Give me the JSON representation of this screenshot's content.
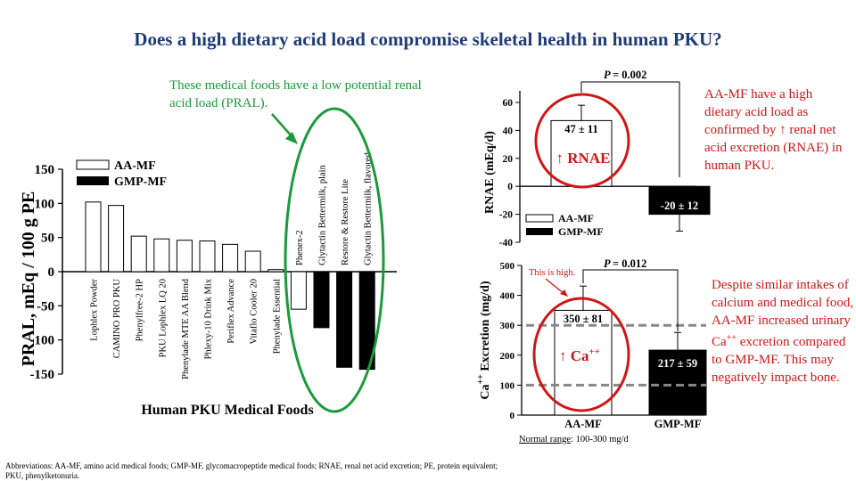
{
  "title": "Does a high dietary acid load compromise skeletal health in human PKU?",
  "notes": {
    "green": "These medical foods have a low potential renal acid load (PRAL).",
    "rnae_red": "AA-MF have a high dietary acid load as confirmed by ↑ renal net acid excretion (RNAE) in human PKU.",
    "ca_red": "Despite similar intakes of calcium and medical food, AA-MF increased urinary Ca++ excretion compared to GMP-MF. This may negatively impact bone.",
    "this_is_high": "This is high.",
    "normal_range_label": "Normal range",
    "normal_range_value": ": 100-300 mg/d",
    "abbreviations": "Abbreviations: AA-MF, amino acid medical foods; GMP-MF, glycomacropeptide medical foods; RNAE, renal net acid excretion; PE, protein equivalent; PKU, phenylketonuria."
  },
  "colors": {
    "title": "#1f3c7a",
    "green": "#1a9a3a",
    "red": "#d01616",
    "dashed": "#888888"
  },
  "chart_data": [
    {
      "type": "bar",
      "xlabel": "Human PKU Medical Foods",
      "ylabel": "PRAL, mEq / 100 g PE",
      "ylim": [
        -150,
        150
      ],
      "yticks": [
        150,
        100,
        50,
        0,
        -50,
        -100,
        -150
      ],
      "legend": [
        "AA-MF",
        "GMP-MF"
      ],
      "categories": [
        "Lophlex Powder",
        "CAMINO PRO PKU",
        "Phenylfree-2 HP",
        "PKU Lophlex LQ 20",
        "Phenylade MTE AA Blend",
        "Phlexy-10 Drink Mix",
        "Periflex Advance",
        "Vitaflo Cooler 20",
        "Phenylade Essential",
        "Phenex-2",
        "Glytactin Bettermilk, plain",
        "Restore & Restore Lite",
        "Glytactin Bettermilk, flavored"
      ],
      "values": [
        102,
        97,
        52,
        48,
        46,
        45,
        40,
        30,
        3,
        -55,
        -82,
        -140,
        -143
      ],
      "groups": [
        "AA-MF",
        "AA-MF",
        "AA-MF",
        "AA-MF",
        "AA-MF",
        "AA-MF",
        "AA-MF",
        "AA-MF",
        "AA-MF",
        "AA-MF",
        "GMP-MF",
        "GMP-MF",
        "GMP-MF"
      ]
    },
    {
      "type": "bar",
      "ylabel": "RNAE (mEq/d)",
      "ylim": [
        -40,
        60
      ],
      "yticks": [
        60,
        40,
        20,
        0,
        -20,
        -40
      ],
      "legend": [
        "AA-MF",
        "GMP-MF"
      ],
      "categories": [
        "AA-MF",
        "GMP-MF"
      ],
      "values": [
        47,
        -20
      ],
      "errors": [
        11,
        12
      ],
      "value_labels": [
        "47 ± 11",
        "-20 ± 12"
      ],
      "inner_label": "↑ RNAE",
      "p_value": "= 0.002",
      "p_label": "P"
    },
    {
      "type": "bar",
      "ylabel": "Ca++ Excretion (mg/d)",
      "ylim": [
        0,
        500
      ],
      "yticks": [
        500,
        400,
        300,
        200,
        100,
        0
      ],
      "categories": [
        "AA-MF",
        "GMP-MF"
      ],
      "values": [
        350,
        217
      ],
      "errors": [
        81,
        59
      ],
      "value_labels": [
        "350 ± 81",
        "217 ± 59"
      ],
      "inner_label": "↑ Ca++",
      "reference_lines": [
        100,
        300
      ],
      "p_value": "= 0.012",
      "p_label": "P"
    }
  ]
}
